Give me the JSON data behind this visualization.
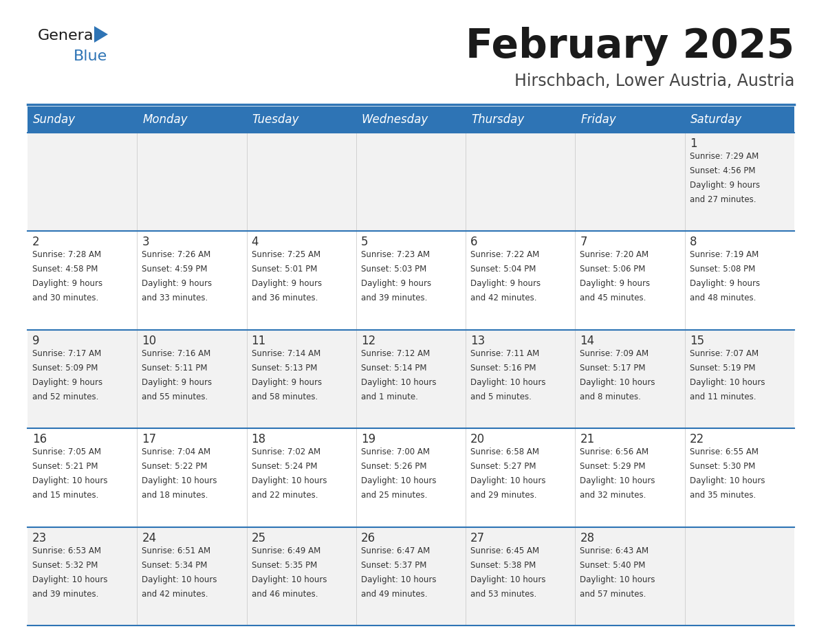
{
  "title": "February 2025",
  "subtitle": "Hirschbach, Lower Austria, Austria",
  "header_bg": "#2E74B5",
  "header_text_color": "#FFFFFF",
  "day_names": [
    "Sunday",
    "Monday",
    "Tuesday",
    "Wednesday",
    "Thursday",
    "Friday",
    "Saturday"
  ],
  "row_bg_even": "#F2F2F2",
  "row_bg_odd": "#FFFFFF",
  "border_color": "#2E74B5",
  "text_color": "#333333",
  "title_color": "#1a1a1a",
  "subtitle_color": "#444444",
  "logo_general_color": "#1a1a1a",
  "logo_blue_color": "#2E74B5",
  "logo_triangle_color": "#2E74B5",
  "days": [
    {
      "date": 1,
      "col": 6,
      "row": 0,
      "sunrise": "7:29 AM",
      "sunset": "4:56 PM",
      "daylight": "9 hours and 27 minutes."
    },
    {
      "date": 2,
      "col": 0,
      "row": 1,
      "sunrise": "7:28 AM",
      "sunset": "4:58 PM",
      "daylight": "9 hours and 30 minutes."
    },
    {
      "date": 3,
      "col": 1,
      "row": 1,
      "sunrise": "7:26 AM",
      "sunset": "4:59 PM",
      "daylight": "9 hours and 33 minutes."
    },
    {
      "date": 4,
      "col": 2,
      "row": 1,
      "sunrise": "7:25 AM",
      "sunset": "5:01 PM",
      "daylight": "9 hours and 36 minutes."
    },
    {
      "date": 5,
      "col": 3,
      "row": 1,
      "sunrise": "7:23 AM",
      "sunset": "5:03 PM",
      "daylight": "9 hours and 39 minutes."
    },
    {
      "date": 6,
      "col": 4,
      "row": 1,
      "sunrise": "7:22 AM",
      "sunset": "5:04 PM",
      "daylight": "9 hours and 42 minutes."
    },
    {
      "date": 7,
      "col": 5,
      "row": 1,
      "sunrise": "7:20 AM",
      "sunset": "5:06 PM",
      "daylight": "9 hours and 45 minutes."
    },
    {
      "date": 8,
      "col": 6,
      "row": 1,
      "sunrise": "7:19 AM",
      "sunset": "5:08 PM",
      "daylight": "9 hours and 48 minutes."
    },
    {
      "date": 9,
      "col": 0,
      "row": 2,
      "sunrise": "7:17 AM",
      "sunset": "5:09 PM",
      "daylight": "9 hours and 52 minutes."
    },
    {
      "date": 10,
      "col": 1,
      "row": 2,
      "sunrise": "7:16 AM",
      "sunset": "5:11 PM",
      "daylight": "9 hours and 55 minutes."
    },
    {
      "date": 11,
      "col": 2,
      "row": 2,
      "sunrise": "7:14 AM",
      "sunset": "5:13 PM",
      "daylight": "9 hours and 58 minutes."
    },
    {
      "date": 12,
      "col": 3,
      "row": 2,
      "sunrise": "7:12 AM",
      "sunset": "5:14 PM",
      "daylight": "10 hours and 1 minute."
    },
    {
      "date": 13,
      "col": 4,
      "row": 2,
      "sunrise": "7:11 AM",
      "sunset": "5:16 PM",
      "daylight": "10 hours and 5 minutes."
    },
    {
      "date": 14,
      "col": 5,
      "row": 2,
      "sunrise": "7:09 AM",
      "sunset": "5:17 PM",
      "daylight": "10 hours and 8 minutes."
    },
    {
      "date": 15,
      "col": 6,
      "row": 2,
      "sunrise": "7:07 AM",
      "sunset": "5:19 PM",
      "daylight": "10 hours and 11 minutes."
    },
    {
      "date": 16,
      "col": 0,
      "row": 3,
      "sunrise": "7:05 AM",
      "sunset": "5:21 PM",
      "daylight": "10 hours and 15 minutes."
    },
    {
      "date": 17,
      "col": 1,
      "row": 3,
      "sunrise": "7:04 AM",
      "sunset": "5:22 PM",
      "daylight": "10 hours and 18 minutes."
    },
    {
      "date": 18,
      "col": 2,
      "row": 3,
      "sunrise": "7:02 AM",
      "sunset": "5:24 PM",
      "daylight": "10 hours and 22 minutes."
    },
    {
      "date": 19,
      "col": 3,
      "row": 3,
      "sunrise": "7:00 AM",
      "sunset": "5:26 PM",
      "daylight": "10 hours and 25 minutes."
    },
    {
      "date": 20,
      "col": 4,
      "row": 3,
      "sunrise": "6:58 AM",
      "sunset": "5:27 PM",
      "daylight": "10 hours and 29 minutes."
    },
    {
      "date": 21,
      "col": 5,
      "row": 3,
      "sunrise": "6:56 AM",
      "sunset": "5:29 PM",
      "daylight": "10 hours and 32 minutes."
    },
    {
      "date": 22,
      "col": 6,
      "row": 3,
      "sunrise": "6:55 AM",
      "sunset": "5:30 PM",
      "daylight": "10 hours and 35 minutes."
    },
    {
      "date": 23,
      "col": 0,
      "row": 4,
      "sunrise": "6:53 AM",
      "sunset": "5:32 PM",
      "daylight": "10 hours and 39 minutes."
    },
    {
      "date": 24,
      "col": 1,
      "row": 4,
      "sunrise": "6:51 AM",
      "sunset": "5:34 PM",
      "daylight": "10 hours and 42 minutes."
    },
    {
      "date": 25,
      "col": 2,
      "row": 4,
      "sunrise": "6:49 AM",
      "sunset": "5:35 PM",
      "daylight": "10 hours and 46 minutes."
    },
    {
      "date": 26,
      "col": 3,
      "row": 4,
      "sunrise": "6:47 AM",
      "sunset": "5:37 PM",
      "daylight": "10 hours and 49 minutes."
    },
    {
      "date": 27,
      "col": 4,
      "row": 4,
      "sunrise": "6:45 AM",
      "sunset": "5:38 PM",
      "daylight": "10 hours and 53 minutes."
    },
    {
      "date": 28,
      "col": 5,
      "row": 4,
      "sunrise": "6:43 AM",
      "sunset": "5:40 PM",
      "daylight": "10 hours and 57 minutes."
    }
  ]
}
